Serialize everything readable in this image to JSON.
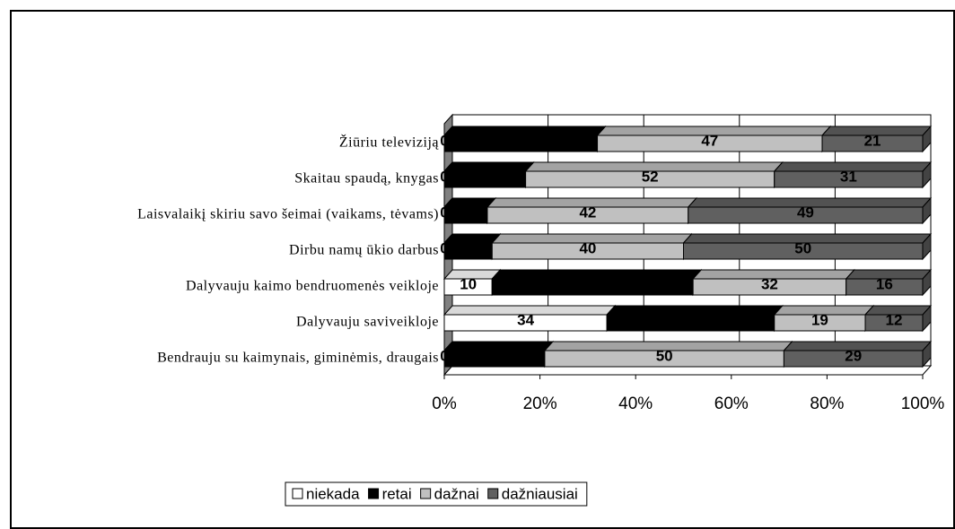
{
  "chart_data": {
    "type": "stacked-bar-horizontal",
    "categories": [
      "Žiūriu televiziją",
      "Skaitau spaudą, knygas",
      "Laisvalaikį skiriu savo šeimai (vaikams, tėvams)",
      "Dirbu namų ūkio darbus",
      "Dalyvauju kaimo bendruomenės veikloje",
      "Dalyvauju saviveikloje",
      "Bendrauju su kaimynais, giminėmis, draugais"
    ],
    "series": [
      {
        "name": "niekada",
        "color": "#ffffff",
        "labels": true,
        "values": [
          0,
          0,
          0,
          0,
          10,
          34,
          0
        ]
      },
      {
        "name": "retai",
        "color": "#000000",
        "labels": false,
        "values": [
          32,
          17,
          9,
          10,
          42,
          35,
          21
        ]
      },
      {
        "name": "dažnai",
        "color": "#c0c0c0",
        "labels": true,
        "values": [
          47,
          52,
          42,
          40,
          32,
          19,
          50
        ]
      },
      {
        "name": "dažniausiai",
        "color": "#606060",
        "labels": true,
        "values": [
          21,
          31,
          49,
          50,
          16,
          12,
          29
        ]
      }
    ],
    "xlim": [
      0,
      100
    ],
    "xticks": [
      {
        "value": 0,
        "label": "0%"
      },
      {
        "value": 20,
        "label": "20%"
      },
      {
        "value": 40,
        "label": "40%"
      },
      {
        "value": 60,
        "label": "60%"
      },
      {
        "value": 80,
        "label": "80%"
      },
      {
        "value": 100,
        "label": "100%"
      }
    ],
    "grid": true,
    "legend": "bottom"
  }
}
